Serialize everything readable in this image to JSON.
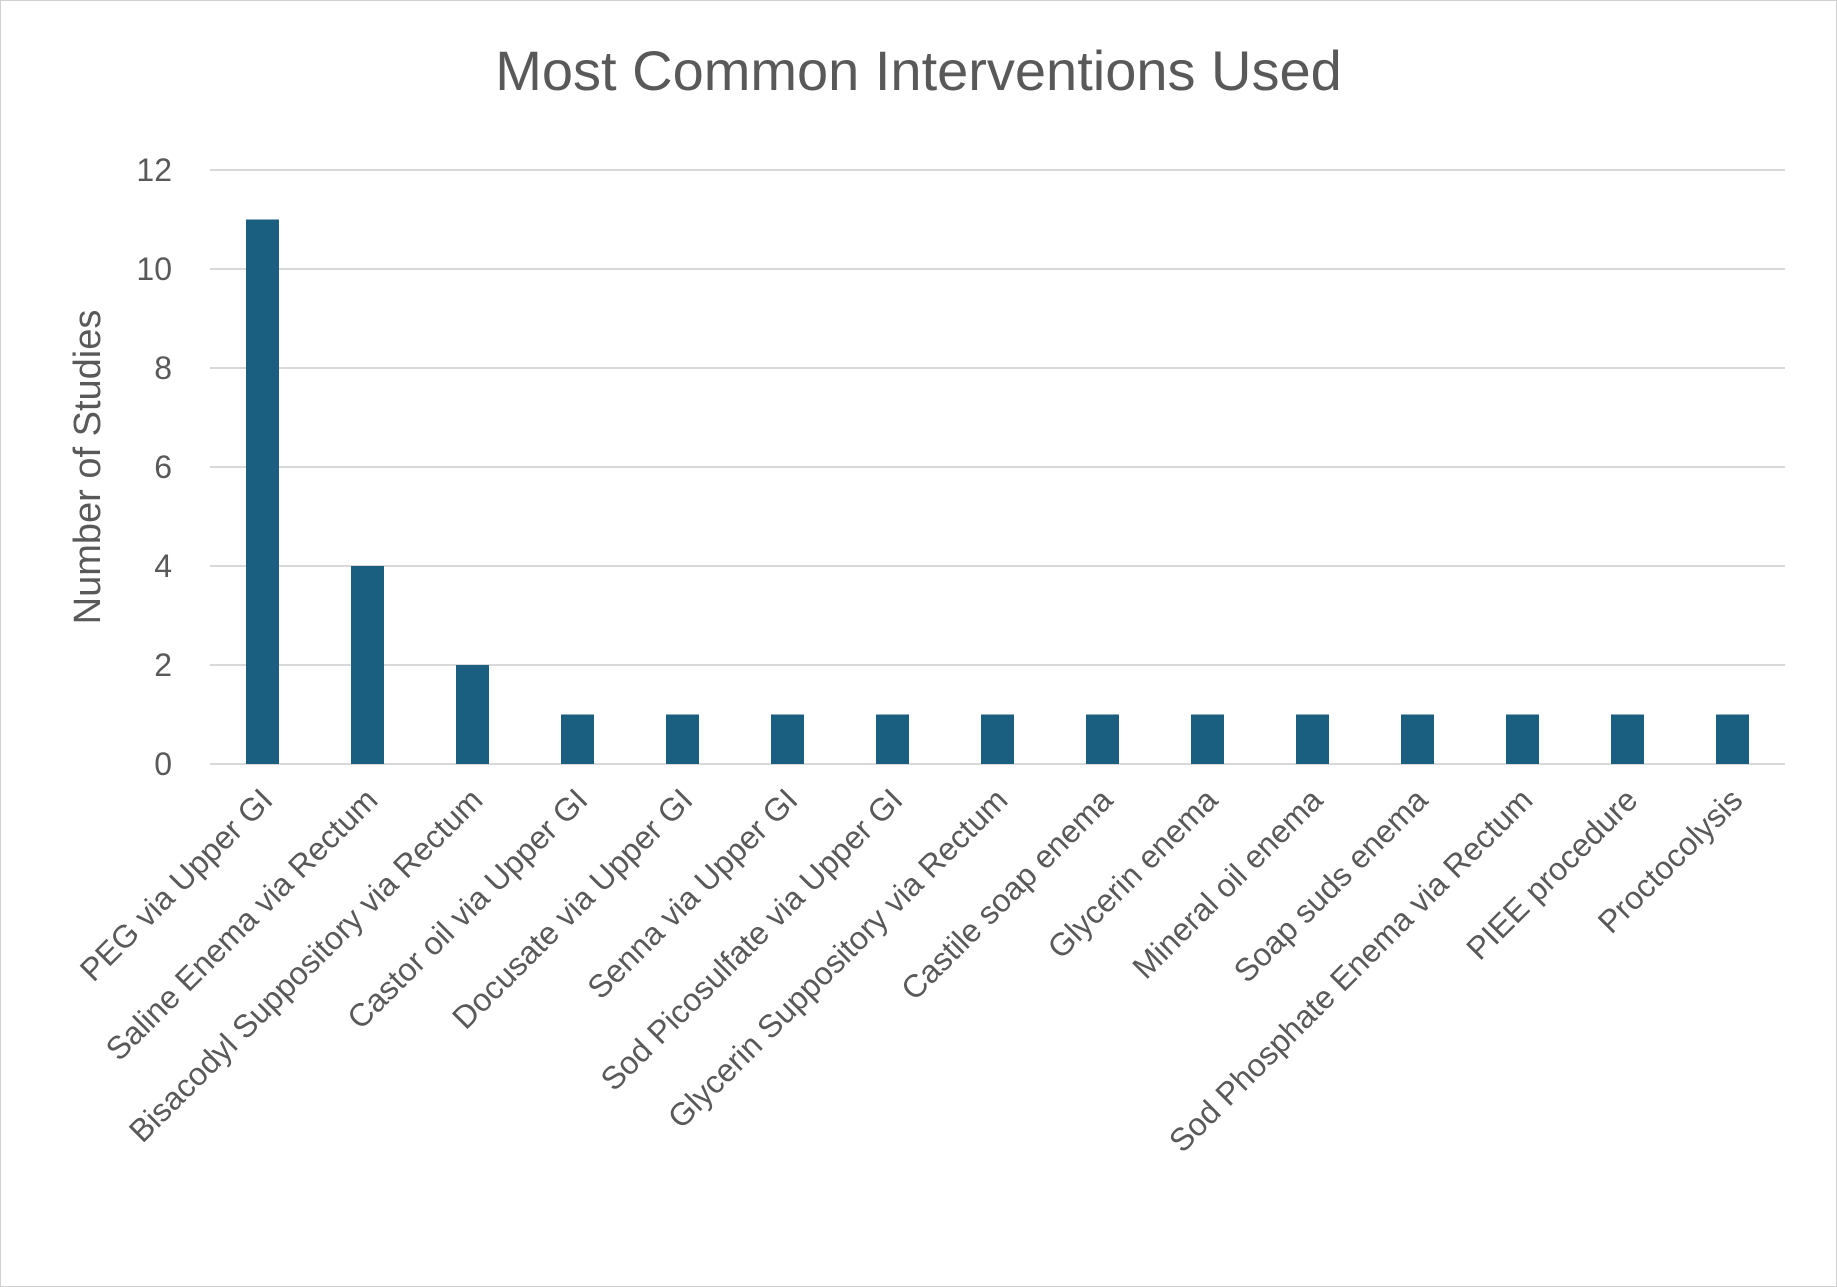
{
  "chart_data": {
    "type": "bar",
    "title": "Most Common Interventions Used",
    "xlabel": "",
    "ylabel": "Number of Studies",
    "ylim": [
      0,
      12
    ],
    "yticks": [
      0,
      2,
      4,
      6,
      8,
      10,
      12
    ],
    "grid": true,
    "legend": "none",
    "bar_color": "#1a5e80",
    "grid_color": "#d9d9d9",
    "text_color": "#595959",
    "categories": [
      "PEG via Upper GI",
      "Saline Enema via Rectum",
      "Bisacodyl Suppository via Rectum",
      "Castor oil via Upper GI",
      "Docusate via Upper GI",
      "Senna via Upper GI",
      "Sod Picosulfate via Upper GI",
      "Glycerin Suppository via Rectum",
      "Castile soap enema",
      "Glycerin enema",
      "Mineral oil enema",
      "Soap suds enema",
      "Sod Phosphate Enema via Rectum",
      "PIEE procedure",
      "Proctocolysis"
    ],
    "values": [
      11,
      4,
      2,
      1,
      1,
      1,
      1,
      1,
      1,
      1,
      1,
      1,
      1,
      1,
      1
    ]
  }
}
